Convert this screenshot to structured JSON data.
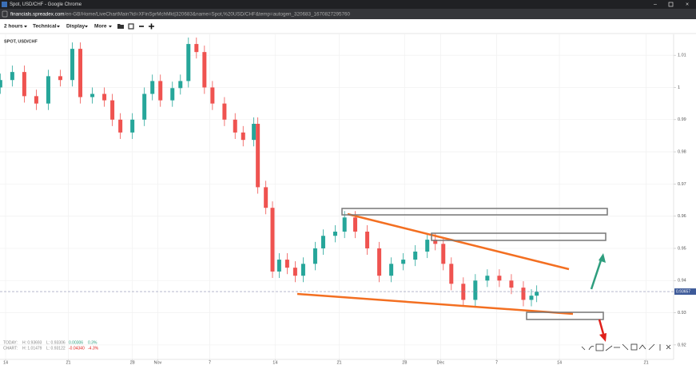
{
  "window": {
    "title": "Spot, USD/CHF - Google Chrome"
  },
  "address_bar": {
    "domain": "financials.spreadex.com",
    "path": "/en-GB/Home/LiveChartMain?id=XFinSprMchMkt|320683&name=Spot,%20USD/CHF&temp=autogen_320683_1670827295760"
  },
  "toolbar": {
    "items": [
      "2 hours",
      "Technical",
      "Display",
      "More"
    ]
  },
  "chart_data": {
    "type": "candlestick",
    "title": "SPOT, USD/CHF",
    "x": [
      -0.4,
      0.5,
      1.4,
      2.3,
      3.2,
      4.1,
      5.0,
      5.6,
      6.5,
      7.4,
      8.0,
      8.6,
      9.5,
      10.4,
      11.0,
      11.6,
      12.5,
      13.1,
      13.7,
      14.3,
      14.9,
      15.5,
      16.4,
      17.2,
      17.8,
      18.6,
      18.9,
      19.5,
      20.0,
      20.5,
      21.1,
      21.7,
      22.3,
      23.2,
      23.8,
      24.7,
      25.4,
      26.2,
      27.1,
      28.0,
      28.9,
      29.8,
      30.7,
      31.6,
      32.2,
      32.8,
      33.4,
      34.3,
      35.2,
      36.1,
      37.0,
      37.9,
      38.8,
      39.4,
      39.8
    ],
    "open": [
      1.0,
      1.0023,
      1.0048,
      0.9973,
      0.995,
      1.0035,
      1.0023,
      1.012,
      0.997,
      0.998,
      0.996,
      0.99,
      0.986,
      0.99,
      0.998,
      1.002,
      0.996,
      0.9998,
      1.002,
      1.0135,
      1.011,
      1.0,
      0.995,
      0.99,
      0.986,
      0.9837,
      0.9887,
      0.969,
      0.9626,
      0.9428,
      0.9465,
      0.944,
      0.9415,
      0.9452,
      0.95,
      0.9539,
      0.9552,
      0.9596,
      0.9552,
      0.95,
      0.9415,
      0.9452,
      0.9465,
      0.949,
      0.9527,
      0.9514,
      0.9452,
      0.939,
      0.934,
      0.94,
      0.9415,
      0.94,
      0.9378,
      0.934,
      0.9353
    ],
    "high": [
      1.0043,
      1.0068,
      1.0068,
      0.9993,
      1.0055,
      1.0055,
      1.014,
      1.014,
      1.0,
      1.0,
      0.998,
      0.992,
      0.992,
      1.0,
      1.004,
      1.004,
      1.0018,
      1.004,
      1.0155,
      1.0155,
      1.013,
      1.002,
      0.997,
      0.992,
      0.988,
      0.9907,
      0.9907,
      0.971,
      0.9646,
      0.9485,
      0.9485,
      0.946,
      0.9472,
      0.952,
      0.9559,
      0.9572,
      0.9616,
      0.9616,
      0.9572,
      0.952,
      0.9472,
      0.9485,
      0.951,
      0.9547,
      0.9547,
      0.9534,
      0.9472,
      0.941,
      0.942,
      0.9435,
      0.9435,
      0.942,
      0.9398,
      0.9373,
      0.9385
    ],
    "low": [
      0.998,
      1.0003,
      0.9953,
      0.993,
      0.993,
      1.0003,
      1.0003,
      0.995,
      0.995,
      0.994,
      0.988,
      0.984,
      0.984,
      0.988,
      0.996,
      0.994,
      0.994,
      0.9978,
      1.0,
      1.009,
      0.998,
      0.993,
      0.988,
      0.984,
      0.9817,
      0.9817,
      0.967,
      0.9606,
      0.9408,
      0.9408,
      0.942,
      0.9395,
      0.9395,
      0.9432,
      0.948,
      0.9519,
      0.9532,
      0.9532,
      0.948,
      0.9395,
      0.9395,
      0.9432,
      0.9445,
      0.947,
      0.9494,
      0.9432,
      0.937,
      0.932,
      0.932,
      0.938,
      0.938,
      0.9358,
      0.932,
      0.932,
      0.9333
    ],
    "close": [
      1.0023,
      1.0048,
      0.9973,
      0.995,
      1.0035,
      1.0023,
      1.012,
      0.997,
      0.998,
      0.996,
      0.99,
      0.986,
      0.99,
      0.998,
      1.002,
      0.996,
      0.9998,
      1.002,
      1.0135,
      1.011,
      1.0,
      0.995,
      0.99,
      0.986,
      0.9837,
      0.9887,
      0.969,
      0.9626,
      0.9428,
      0.9465,
      0.944,
      0.9415,
      0.9452,
      0.95,
      0.9539,
      0.9552,
      0.9596,
      0.9552,
      0.95,
      0.9415,
      0.9452,
      0.9465,
      0.949,
      0.9527,
      0.9514,
      0.9452,
      0.939,
      0.934,
      0.94,
      0.9415,
      0.94,
      0.9378,
      0.934,
      0.9353,
      0.9365
    ],
    "up_color": "#26a69a",
    "down_color": "#ef5350",
    "grid": true,
    "xlim": [
      -0.42,
      50.06
    ],
    "xticks": [
      {
        "value": 0,
        "label": "14"
      },
      {
        "value": 4.7,
        "label": "21"
      },
      {
        "value": 9.5,
        "label": "28"
      },
      {
        "value": 11.4,
        "label": "Nov"
      },
      {
        "value": 15.3,
        "label": "7"
      },
      {
        "value": 20.2,
        "label": "14"
      },
      {
        "value": 25,
        "label": "21"
      },
      {
        "value": 29.9,
        "label": "28"
      },
      {
        "value": 32.6,
        "label": "Dec"
      },
      {
        "value": 36.8,
        "label": "7"
      },
      {
        "value": 41.5,
        "label": "14"
      },
      {
        "value": 48,
        "label": "21"
      }
    ],
    "ylim": [
      0.9155,
      1.0165
    ],
    "yticks": [
      0.92,
      0.93,
      0.94,
      0.95,
      0.96,
      0.97,
      0.98,
      0.99,
      1,
      1.01
    ],
    "last_price": 0.93657,
    "stats": [
      {
        "label": "TODAY:",
        "high": "H: 0.93693",
        "low": "L: 0.93306",
        "change": "0.00306",
        "change_pct": "0.3%"
      },
      {
        "label": "CHART:",
        "high": "H: 1.01479",
        "low": "L: 0.93122",
        "change": "-0.04340",
        "change_pct": "-4.3%"
      }
    ]
  }
}
